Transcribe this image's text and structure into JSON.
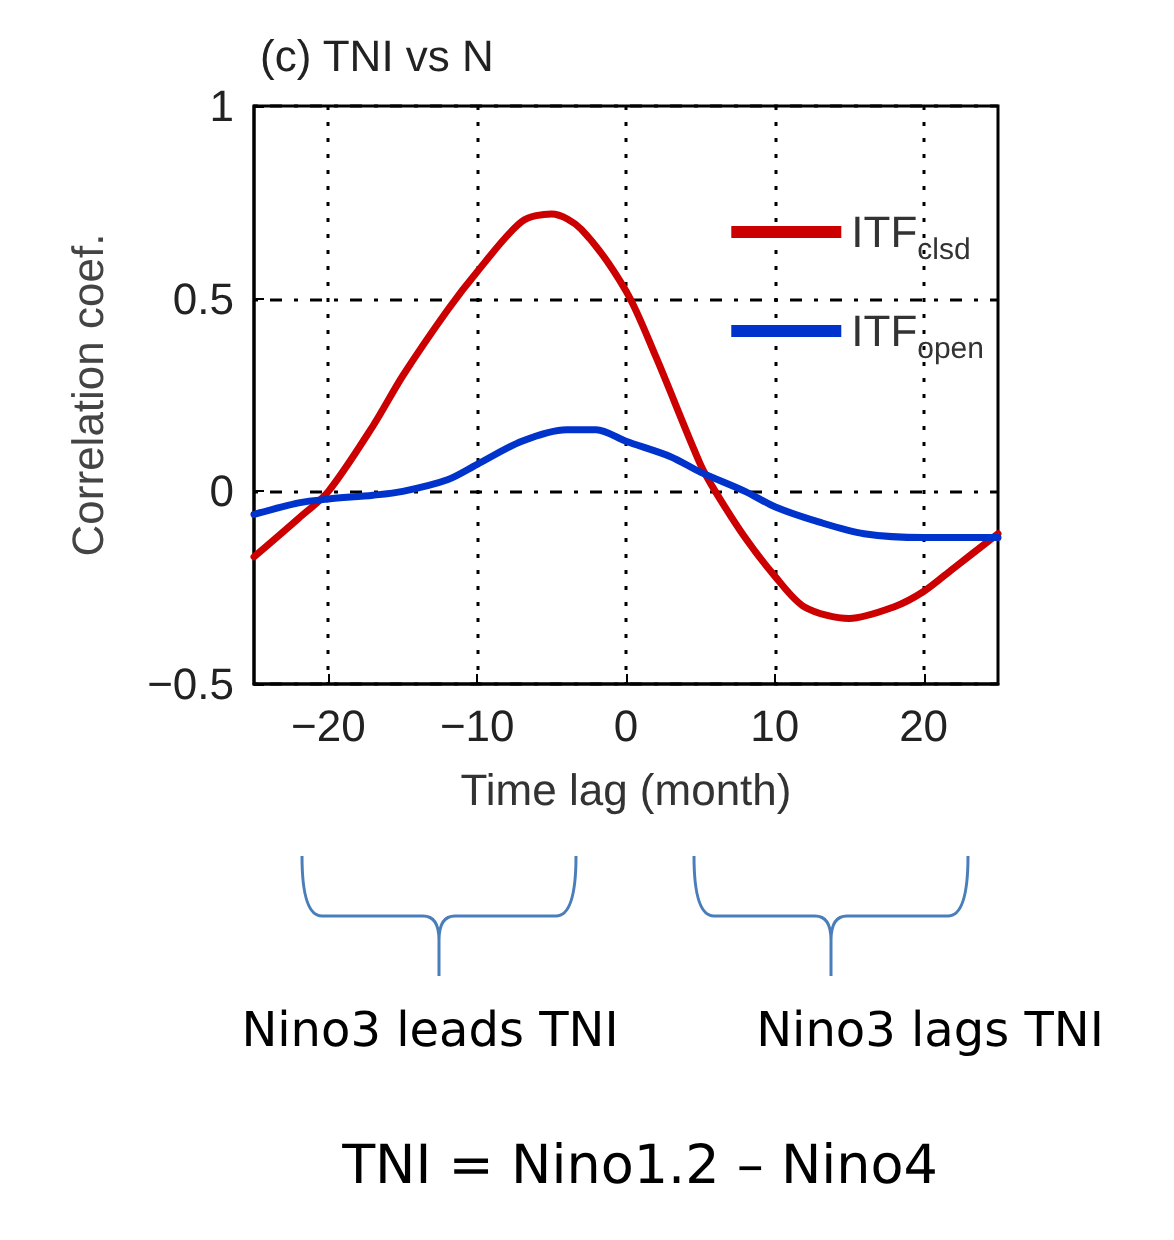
{
  "chart_data": {
    "type": "line",
    "title": "(c) TNI vs N",
    "xlabel": "Time lag (month)",
    "ylabel": "Correlation coef.",
    "xlim": [
      -25,
      25
    ],
    "xticks": [
      -20,
      -10,
      0,
      10,
      20
    ],
    "ylim": [
      -0.5,
      1
    ],
    "yticks": [
      -0.5,
      0,
      0.5,
      1
    ],
    "grid": true,
    "legend": "top right",
    "line_style": "solid",
    "series": [
      {
        "name": "ITF$_{clsd}$",
        "color": "#cc0000",
        "x": [
          -25,
          -22,
          -20,
          -17,
          -15,
          -12,
          -10,
          -7,
          -5,
          -3,
          0,
          2,
          5,
          6,
          8,
          10,
          12,
          15,
          18,
          20,
          22,
          25
        ],
        "values": [
          -0.17,
          -0.07,
          0.0,
          0.17,
          0.3,
          0.47,
          0.57,
          0.7,
          0.72,
          0.68,
          0.52,
          0.35,
          0.07,
          0.0,
          -0.12,
          -0.22,
          -0.3,
          -0.33,
          -0.3,
          -0.26,
          -0.2,
          -0.11
        ]
      },
      {
        "name": "ITF$_{open}$",
        "color": "#0033cc",
        "x": [
          -25,
          -22,
          -20,
          -17,
          -15,
          -12,
          -10,
          -7,
          -4,
          -2,
          0,
          3,
          5,
          8,
          10,
          13,
          16,
          20,
          25
        ],
        "values": [
          -0.06,
          -0.03,
          -0.02,
          -0.01,
          0.0,
          0.03,
          0.07,
          0.13,
          0.16,
          0.16,
          0.13,
          0.09,
          0.05,
          0.0,
          -0.04,
          -0.08,
          -0.11,
          -0.12,
          -0.12
        ]
      }
    ],
    "annotations": [
      "Nino3 leads TNI",
      "Nino3 lags TNI",
      "TNI = Nino1.2 – Nino4"
    ]
  }
}
